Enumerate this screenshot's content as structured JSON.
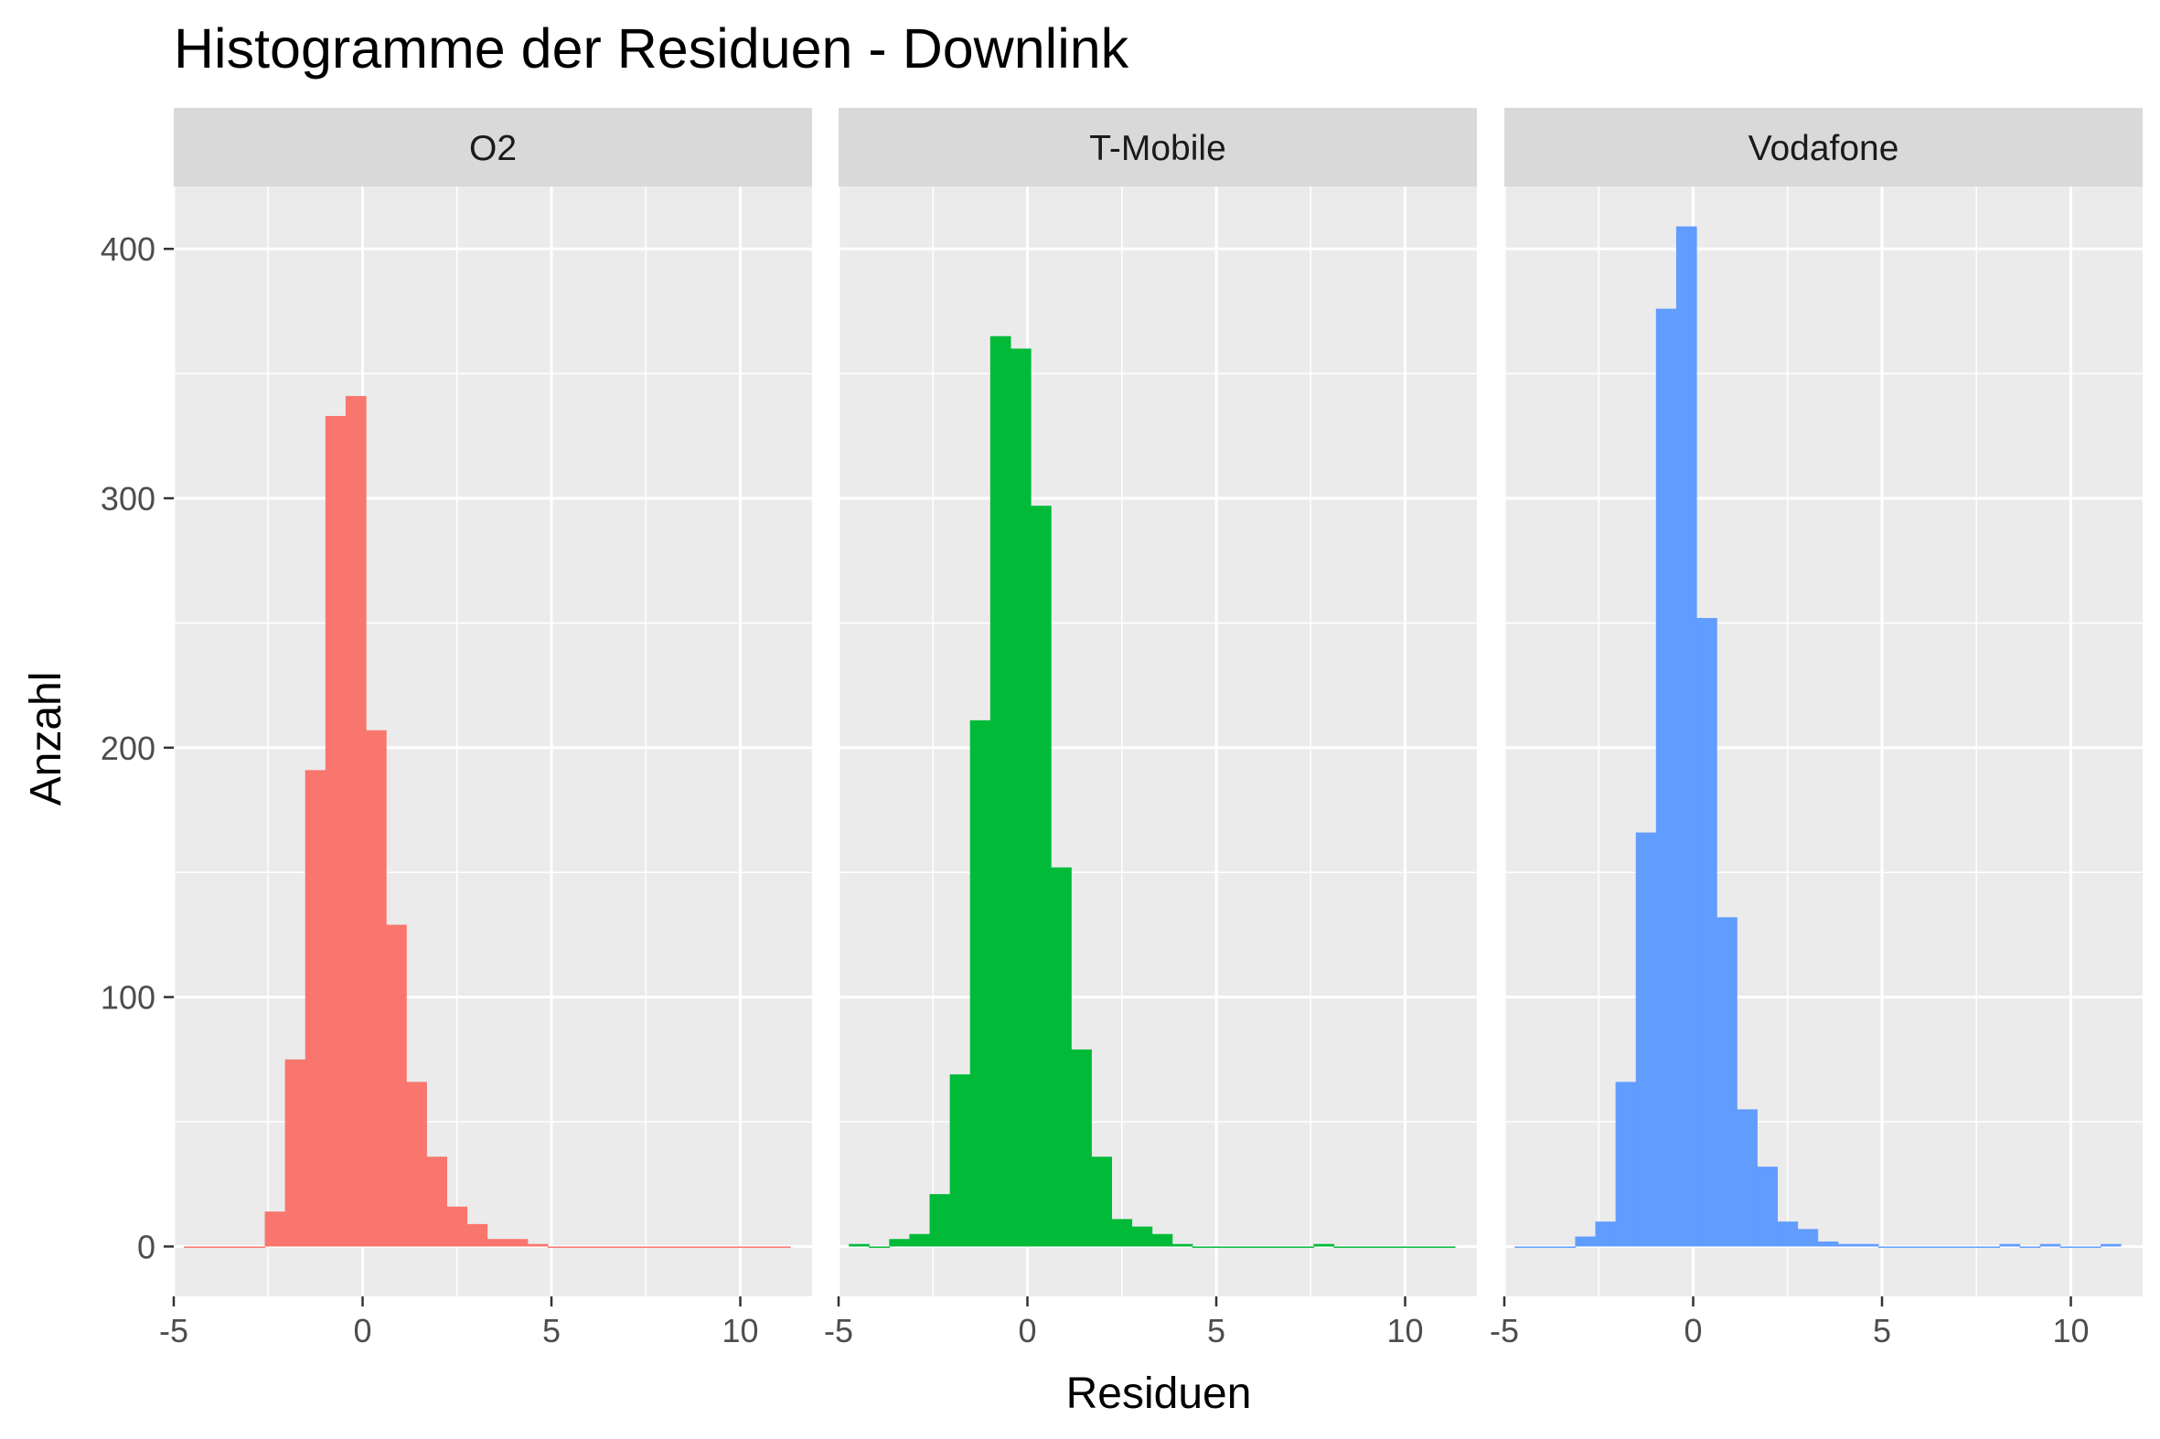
{
  "chart_data": {
    "type": "bar",
    "title": "Histogramme der Residuen - Downlink",
    "xlabel": "Residuen",
    "ylabel": "Anzahl",
    "xlim": [
      -5,
      11.9
    ],
    "ylim": [
      -20,
      425
    ],
    "x_ticks": [
      -5,
      0,
      5,
      10
    ],
    "y_ticks": [
      0,
      100,
      200,
      300,
      400
    ],
    "x_tick_labels": [
      "-5",
      "0",
      "5",
      "10"
    ],
    "y_tick_labels": [
      "0",
      "100",
      "200",
      "300",
      "400"
    ],
    "grid": true,
    "legend": "none",
    "bin_width": 0.535,
    "bin_start": -4.73,
    "panels": [
      {
        "name": "O2",
        "color": "#F8766D",
        "counts": [
          0,
          0,
          0,
          0,
          14,
          75,
          191,
          333,
          341,
          207,
          129,
          66,
          36,
          16,
          9,
          3,
          3,
          1,
          0,
          0,
          0,
          0,
          0,
          0,
          0,
          0,
          0,
          0,
          0,
          0
        ]
      },
      {
        "name": "T-Mobile",
        "color": "#00BA38",
        "counts": [
          1,
          0,
          3,
          5,
          21,
          69,
          211,
          365,
          360,
          297,
          152,
          79,
          36,
          11,
          8,
          5,
          1,
          0,
          0,
          0,
          0,
          0,
          0,
          1,
          0,
          0,
          0,
          0,
          0,
          0
        ]
      },
      {
        "name": "Vodafone",
        "color": "#619CFF",
        "counts": [
          0,
          0,
          0,
          4,
          10,
          66,
          166,
          376,
          409,
          252,
          132,
          55,
          32,
          10,
          7,
          2,
          1,
          1,
          0,
          0,
          0,
          0,
          0,
          0,
          1,
          0,
          1,
          0,
          0,
          1
        ]
      }
    ]
  }
}
